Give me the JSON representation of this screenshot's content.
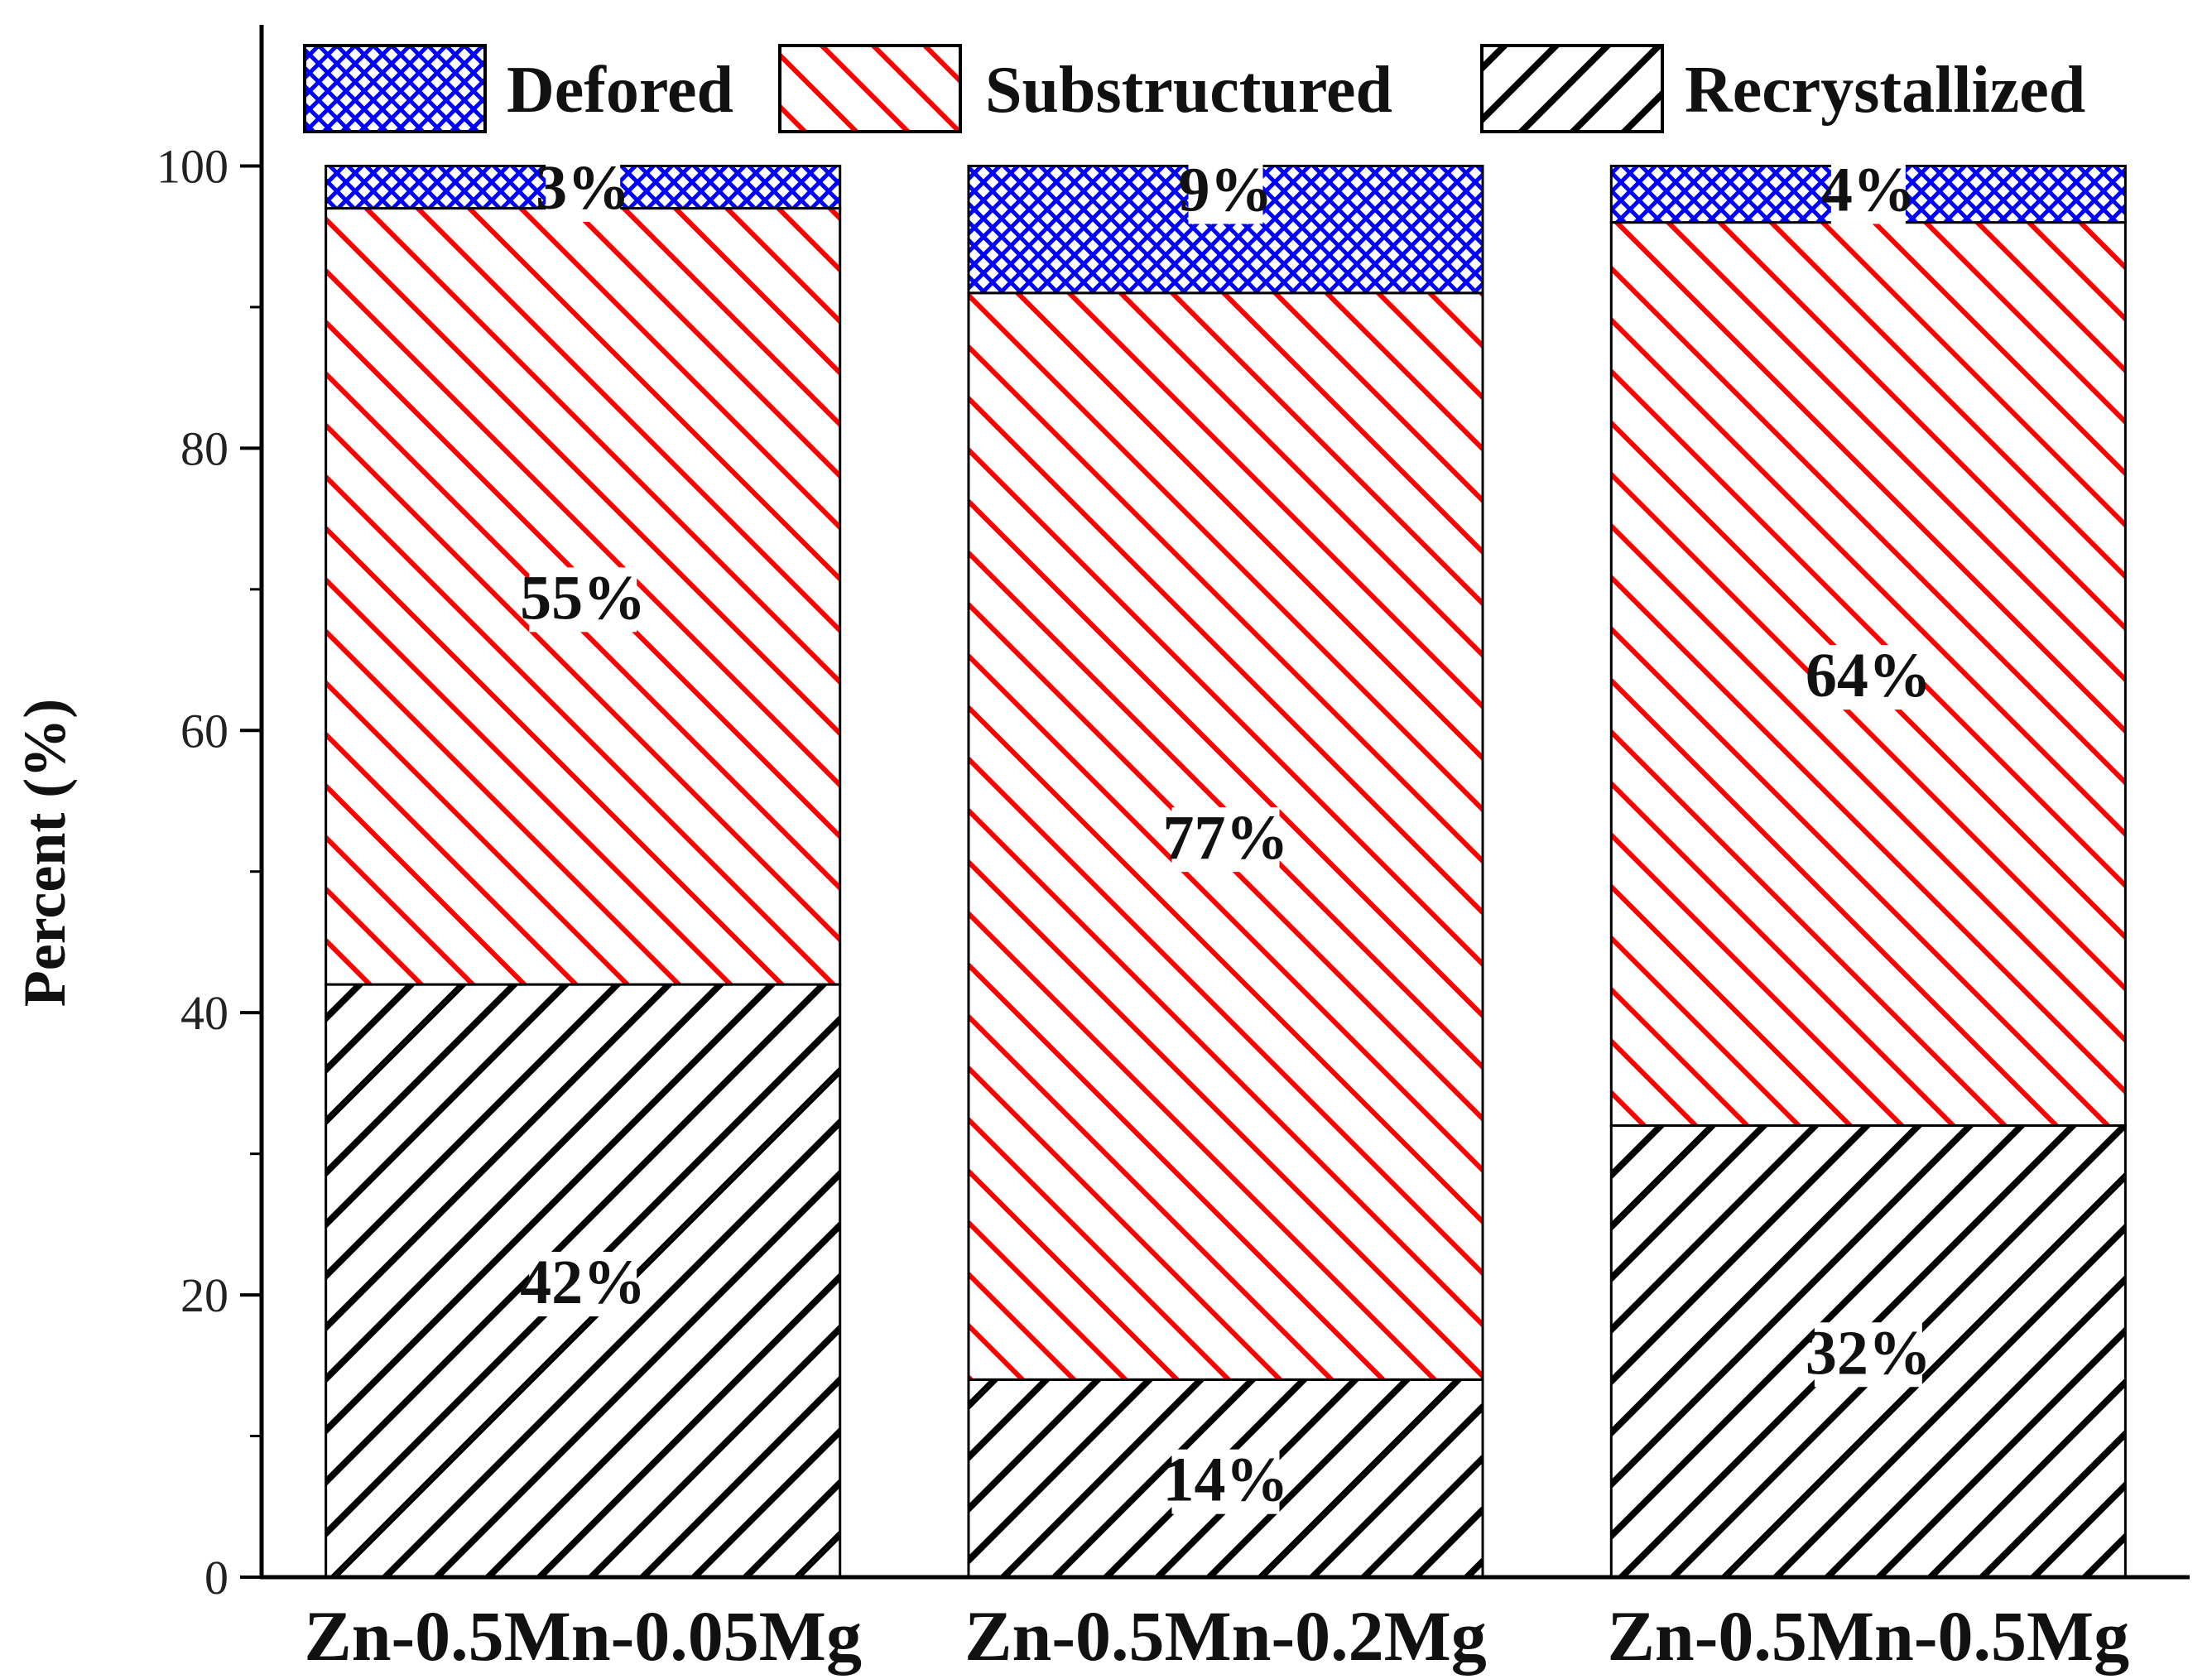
{
  "chart_data": {
    "type": "bar",
    "stacked": true,
    "categories": [
      "Zn-0.5Mn-0.05Mg",
      "Zn-0.5Mn-0.2Mg",
      "Zn-0.5Mn-0.5Mg"
    ],
    "series": [
      {
        "name": "Recrystallized",
        "values": [
          42,
          14,
          32
        ],
        "labels": [
          "42%",
          "14%",
          "32%"
        ],
        "color": "#000000",
        "pattern": "diagonal-hatch"
      },
      {
        "name": "Substructured",
        "values": [
          55,
          77,
          64
        ],
        "labels": [
          "55%",
          "77%",
          "64%"
        ],
        "color": "#ff0000",
        "pattern": "back-diagonal-hatch"
      },
      {
        "name": "Defored",
        "values": [
          3,
          9,
          4
        ],
        "labels": [
          "3%",
          "9%",
          "4%"
        ],
        "color": "#0000ff",
        "pattern": "crosshatch"
      }
    ],
    "legend_order": [
      "Defored",
      "Substructured",
      "Recrystallized"
    ],
    "title": "",
    "xlabel": "",
    "ylabel": "Percent (%)",
    "ylim": [
      0,
      110
    ],
    "yticks": [
      0,
      20,
      40,
      60,
      80,
      100
    ],
    "grid": false,
    "legend_position": "top"
  }
}
